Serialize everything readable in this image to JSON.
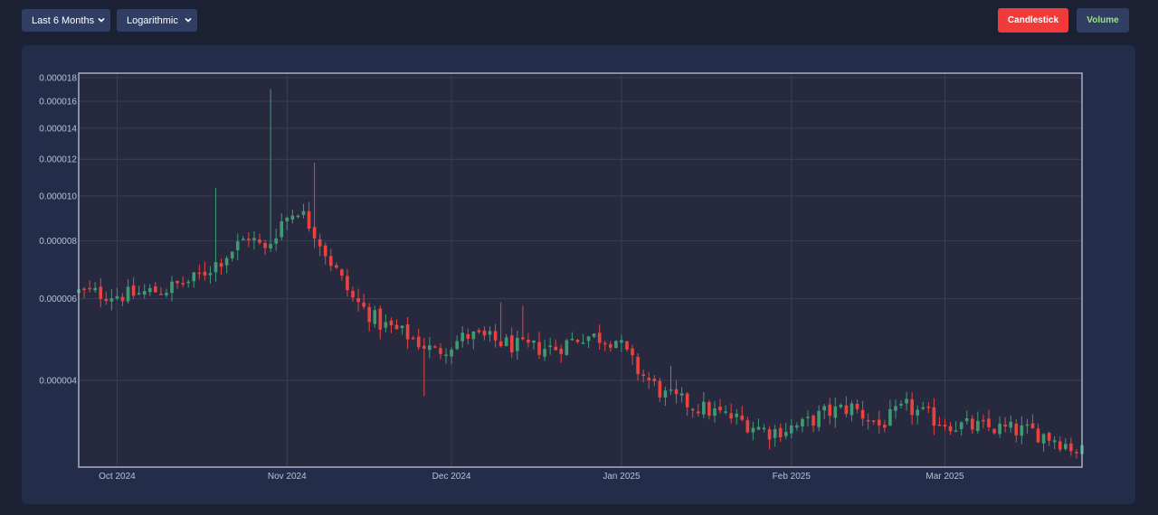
{
  "controls": {
    "range_select": "Last 6 Months",
    "scale_select": "Logarithmic",
    "candlestick_label": "Candlestick",
    "volume_label": "Volume"
  },
  "colors": {
    "up": "#3f9a74",
    "down": "#e8433f",
    "accent_red": "#f23a3a",
    "volume_green": "#9fe08f"
  },
  "chart_data": {
    "type": "candlestick",
    "y_scale": "log",
    "ylim": [
      2.6e-06,
      1.84e-05
    ],
    "grid": true,
    "title": "",
    "xlabel": "",
    "ylabel": "",
    "y_ticks": [
      {
        "value": 4e-06,
        "label": "0.000004"
      },
      {
        "value": 6e-06,
        "label": "0.000006"
      },
      {
        "value": 8e-06,
        "label": "0.000008"
      },
      {
        "value": 1e-05,
        "label": "0.000010"
      },
      {
        "value": 1.2e-05,
        "label": "0.000012"
      },
      {
        "value": 1.4e-05,
        "label": "0.000014"
      },
      {
        "value": 1.6e-05,
        "label": "0.000016"
      },
      {
        "value": 1.8e-05,
        "label": "0.000018"
      }
    ],
    "x_start": "2024-09-24",
    "x_end": "2025-03-26",
    "x_ticks": [
      {
        "date": "2024-10-01",
        "label": "Oct 2024"
      },
      {
        "date": "2024-11-01",
        "label": "Nov 2024"
      },
      {
        "date": "2024-12-01",
        "label": "Dec 2024"
      },
      {
        "date": "2025-01-01",
        "label": "Jan 2025"
      },
      {
        "date": "2025-02-01",
        "label": "Feb 2025"
      },
      {
        "date": "2025-03-01",
        "label": "Mar 2025"
      }
    ],
    "close_path": [
      [
        "2024-09-24",
        6.2e-06
      ],
      [
        "2024-10-03",
        6.1e-06
      ],
      [
        "2024-10-10",
        6.3e-06
      ],
      [
        "2024-10-15",
        6.6e-06
      ],
      [
        "2024-10-20",
        7.3e-06
      ],
      [
        "2024-10-25",
        8.2e-06
      ],
      [
        "2024-10-28",
        7.6e-06
      ],
      [
        "2024-10-31",
        8.8e-06
      ],
      [
        "2024-11-03",
        9.4e-06
      ],
      [
        "2024-11-06",
        8.4e-06
      ],
      [
        "2024-11-09",
        7.2e-06
      ],
      [
        "2024-11-13",
        6e-06
      ],
      [
        "2024-11-18",
        5.3e-06
      ],
      [
        "2024-11-23",
        5e-06
      ],
      [
        "2024-11-28",
        4.6e-06
      ],
      [
        "2024-12-04",
        5e-06
      ],
      [
        "2024-12-08",
        4.9e-06
      ],
      [
        "2024-12-14",
        4.7e-06
      ],
      [
        "2024-12-20",
        4.7e-06
      ],
      [
        "2024-12-25",
        5e-06
      ],
      [
        "2024-12-31",
        4.9e-06
      ],
      [
        "2025-01-04",
        4.2e-06
      ],
      [
        "2025-01-09",
        3.7e-06
      ],
      [
        "2025-01-15",
        3.5e-06
      ],
      [
        "2025-01-22",
        3.3e-06
      ],
      [
        "2025-01-28",
        3.1e-06
      ],
      [
        "2025-02-03",
        3.2e-06
      ],
      [
        "2025-02-07",
        3.4e-06
      ],
      [
        "2025-02-12",
        3.5e-06
      ],
      [
        "2025-02-17",
        3.2e-06
      ],
      [
        "2025-02-22",
        3.5e-06
      ],
      [
        "2025-02-27",
        3.3e-06
      ],
      [
        "2025-03-03",
        3.2e-06
      ],
      [
        "2025-03-10",
        3.15e-06
      ],
      [
        "2025-03-17",
        3.1e-06
      ],
      [
        "2025-03-21",
        3e-06
      ],
      [
        "2025-03-26",
        2.8e-06
      ]
    ],
    "spikes": [
      {
        "date": "2024-10-29",
        "high": 1.7e-05
      },
      {
        "date": "2024-11-06",
        "high": 1.18e-05
      },
      {
        "date": "2024-10-19",
        "high": 1.04e-05
      },
      {
        "date": "2024-11-26",
        "low": 3.7e-06
      },
      {
        "date": "2024-12-10",
        "high": 5.9e-06
      },
      {
        "date": "2024-12-14",
        "high": 5.8e-06
      },
      {
        "date": "2025-01-10",
        "high": 4.3e-06
      },
      {
        "date": "2025-03-14",
        "high": 3.3e-06
      }
    ]
  }
}
